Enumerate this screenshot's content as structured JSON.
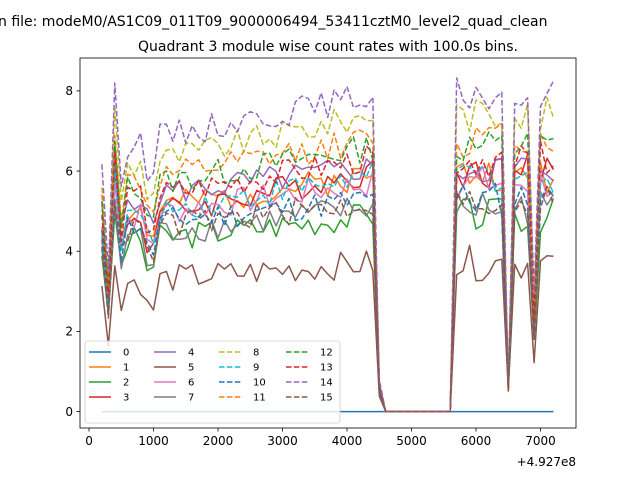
{
  "figure": {
    "suptitle": "n file: modeM0/AS1C09_011T09_9000006494_53411cztM0_level2_quad_clean",
    "title": "Quadrant 3 module wise count rates with 100.0s bins.",
    "x_offset_text": "+4.927e8"
  },
  "chart_data": {
    "type": "line",
    "title": "Quadrant 3 module wise count rates with 100.0s bins.",
    "xlabel": "",
    "ylabel": "",
    "x_offset": 492700000,
    "xlim": [
      -140,
      7550
    ],
    "ylim": [
      -0.41,
      8.82
    ],
    "x_ticks": [
      0,
      1000,
      2000,
      3000,
      4000,
      5000,
      6000,
      7000
    ],
    "y_ticks": [
      0,
      2,
      4,
      6,
      8
    ],
    "x_segments": [
      {
        "start": 200,
        "end": 4500,
        "step": 100
      },
      {
        "start": 4500,
        "end": 5600,
        "step": 100
      },
      {
        "start": 5600,
        "end": 7200,
        "step": 100
      }
    ],
    "legend": {
      "location": "lower-left",
      "columns": 4
    },
    "grid": false,
    "series": [
      {
        "name": "0",
        "color": "#1f77b4",
        "dash": "solid",
        "level_a": 0.0,
        "level_b": 0.0,
        "low": 0.0,
        "seed": 1
      },
      {
        "name": "1",
        "color": "#ff7f0e",
        "dash": "solid",
        "level_a": 4.9,
        "level_b": 5.9,
        "low": 2.6,
        "seed": 2
      },
      {
        "name": "2",
        "color": "#2ca02c",
        "dash": "solid",
        "level_a": 4.2,
        "level_b": 4.9,
        "low": 2.3,
        "seed": 3
      },
      {
        "name": "3",
        "color": "#d62728",
        "dash": "solid",
        "level_a": 4.7,
        "level_b": 6.0,
        "low": 2.6,
        "seed": 4
      },
      {
        "name": "4",
        "color": "#9467bd",
        "dash": "solid",
        "level_a": 5.3,
        "level_b": 6.1,
        "low": 2.9,
        "seed": 5
      },
      {
        "name": "5",
        "color": "#8c564b",
        "dash": "solid",
        "level_a": 3.2,
        "level_b": 3.7,
        "low": 1.7,
        "seed": 6
      },
      {
        "name": "6",
        "color": "#e377c2",
        "dash": "solid",
        "level_a": 4.8,
        "level_b": 5.7,
        "low": 2.6,
        "seed": 7
      },
      {
        "name": "7",
        "color": "#7f7f7f",
        "dash": "solid",
        "level_a": 4.3,
        "level_b": 5.1,
        "low": 2.4,
        "seed": 8
      },
      {
        "name": "8",
        "color": "#bcbd22",
        "dash": "dashed",
        "level_a": 6.0,
        "level_b": 7.4,
        "low": 3.2,
        "seed": 9
      },
      {
        "name": "9",
        "color": "#17becf",
        "dash": "dashed",
        "level_a": 4.8,
        "level_b": 5.9,
        "low": 2.6,
        "seed": 10
      },
      {
        "name": "10",
        "color": "#1f77b4",
        "dash": "dashed",
        "level_a": 4.6,
        "level_b": 5.3,
        "low": 2.5,
        "seed": 11
      },
      {
        "name": "11",
        "color": "#ff7f0e",
        "dash": "dashed",
        "level_a": 5.6,
        "level_b": 6.8,
        "low": 3.0,
        "seed": 12
      },
      {
        "name": "12",
        "color": "#2ca02c",
        "dash": "dashed",
        "level_a": 5.5,
        "level_b": 6.6,
        "low": 3.0,
        "seed": 13
      },
      {
        "name": "13",
        "color": "#d62728",
        "dash": "dashed",
        "level_a": 5.2,
        "level_b": 6.3,
        "low": 2.8,
        "seed": 14
      },
      {
        "name": "14",
        "color": "#9467bd",
        "dash": "dashed",
        "level_a": 6.6,
        "level_b": 7.9,
        "low": 3.5,
        "seed": 15
      },
      {
        "name": "15",
        "color": "#8c564b",
        "dash": "dashed",
        "level_a": 4.5,
        "level_b": 5.2,
        "low": 2.4,
        "seed": 16
      }
    ]
  }
}
